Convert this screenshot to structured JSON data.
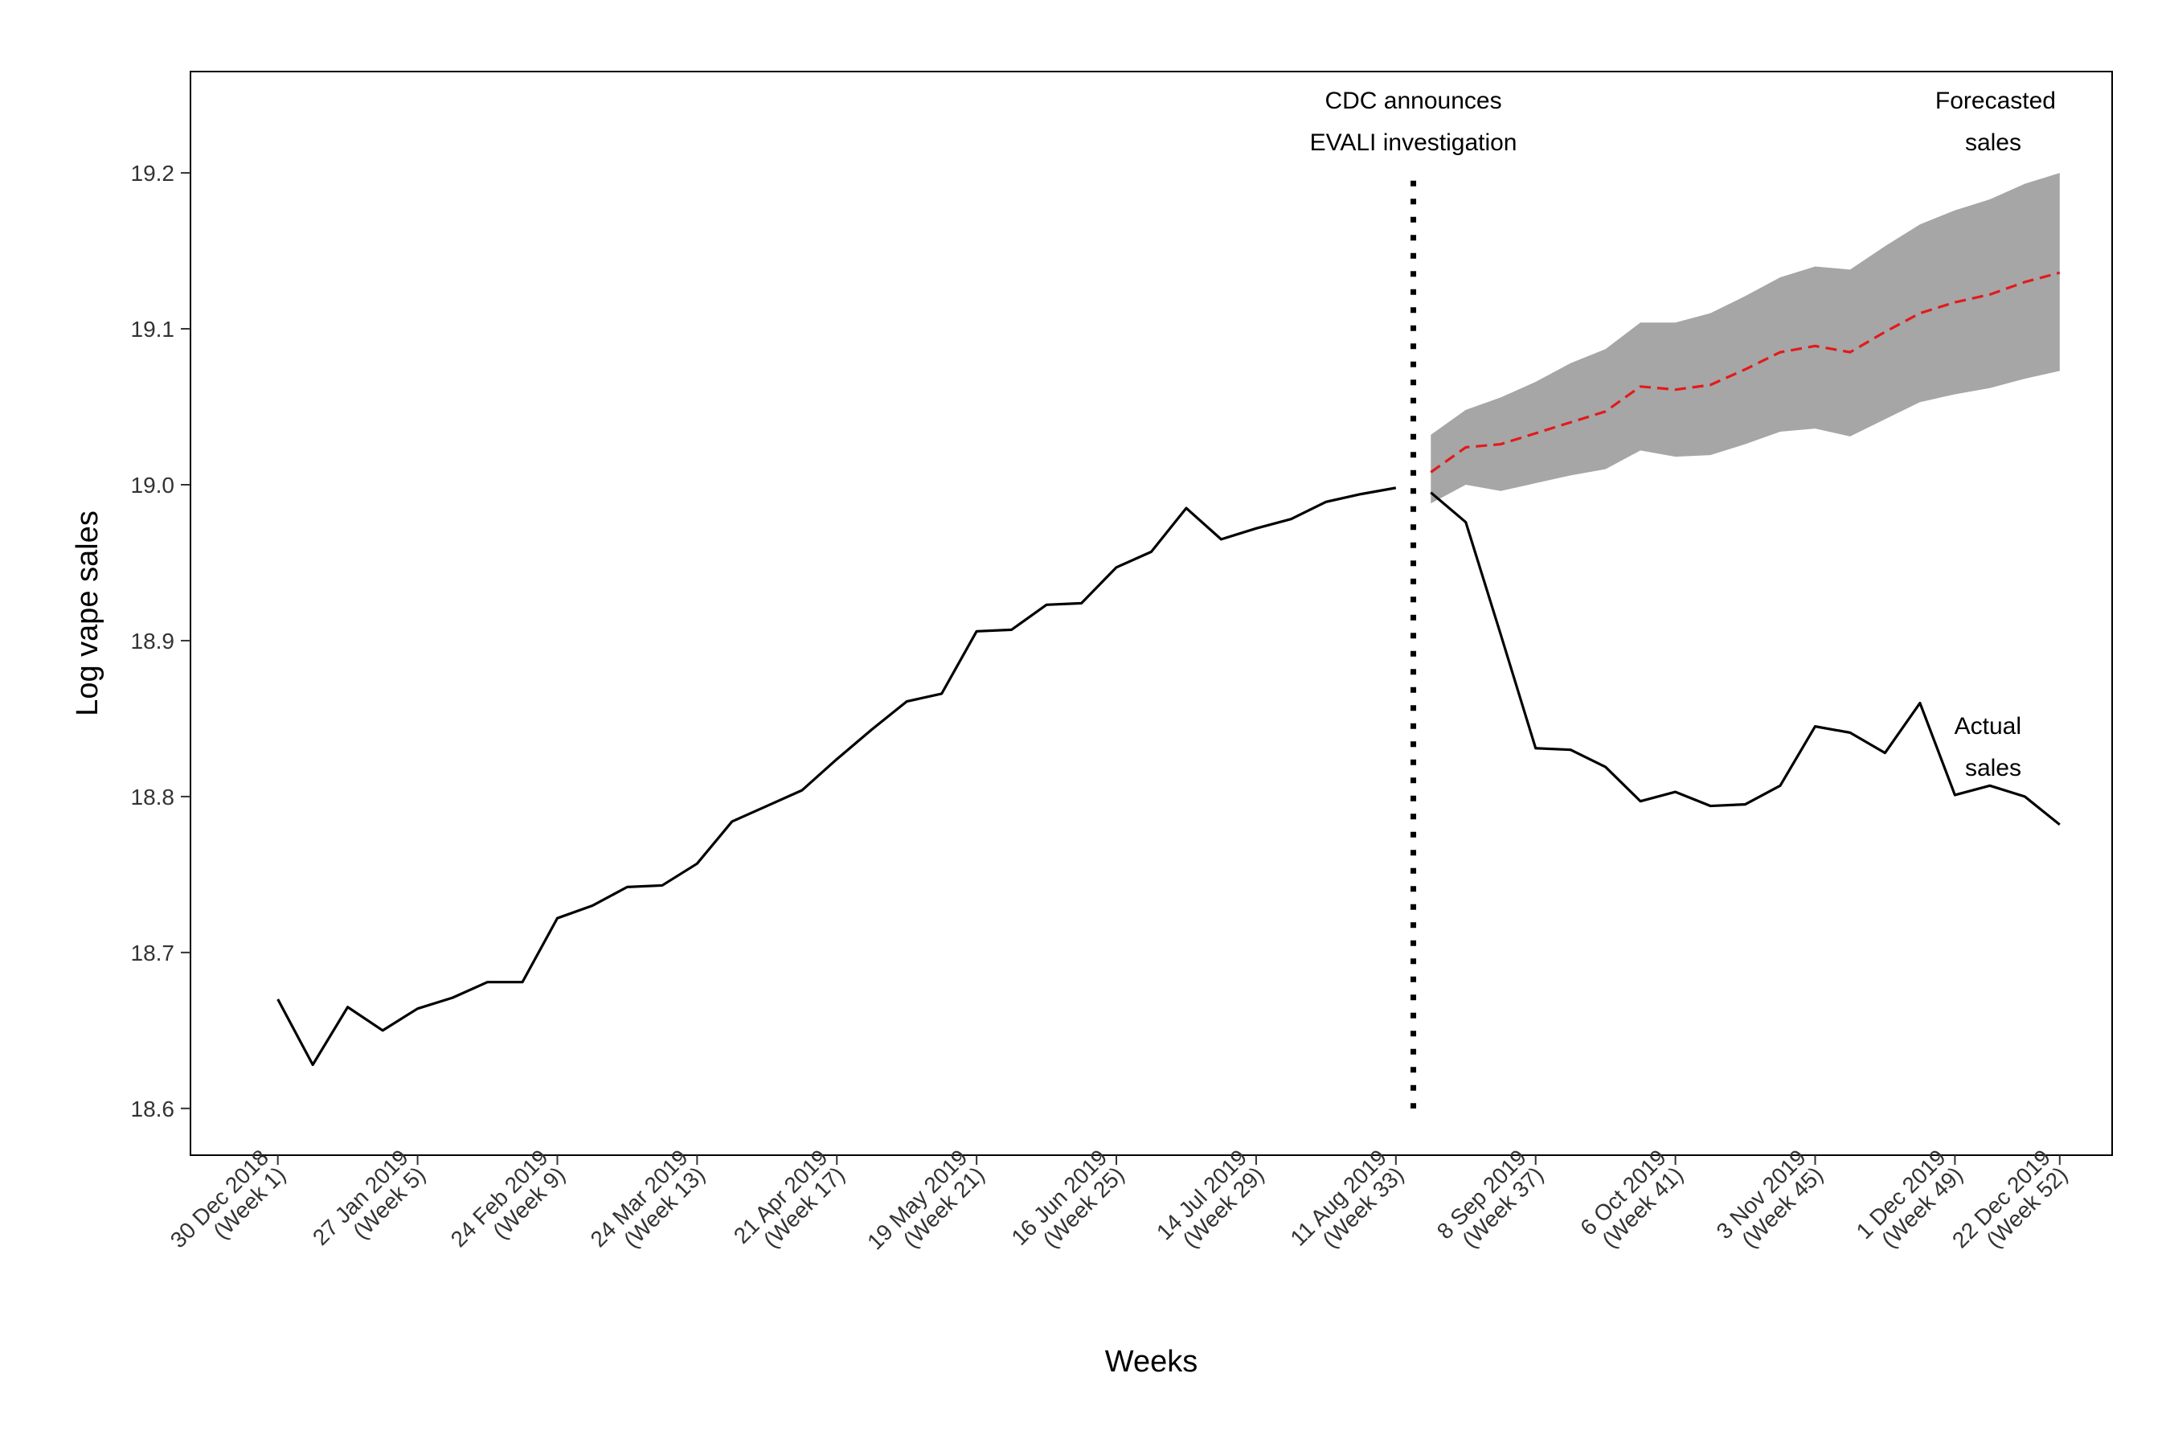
{
  "chart_data": {
    "type": "line",
    "xlabel": "Weeks",
    "ylabel": "Log vape sales",
    "ylim": [
      18.57,
      19.265
    ],
    "xlim": [
      -1.5,
      53.5
    ],
    "y_ticks": [
      18.6,
      18.7,
      18.8,
      18.9,
      19.0,
      19.1,
      19.2
    ],
    "y_tick_labels": [
      "18.6",
      "18.7",
      "18.8",
      "18.9",
      "19.0",
      "19.1",
      "19.2"
    ],
    "x_ticks": [
      {
        "week": 1,
        "line1": "30 Dec 2018",
        "line2": "(Week 1)"
      },
      {
        "week": 5,
        "line1": "27 Jan 2019",
        "line2": "(Week 5)"
      },
      {
        "week": 9,
        "line1": "24 Feb 2019",
        "line2": "(Week 9)"
      },
      {
        "week": 13,
        "line1": "24 Mar 2019",
        "line2": "(Week 13)"
      },
      {
        "week": 17,
        "line1": "21 Apr 2019",
        "line2": "(Week 17)"
      },
      {
        "week": 21,
        "line1": "19 May 2019",
        "line2": "(Week 21)"
      },
      {
        "week": 25,
        "line1": "16 Jun 2019",
        "line2": "(Week 25)"
      },
      {
        "week": 29,
        "line1": "14 Jul 2019",
        "line2": "(Week 29)"
      },
      {
        "week": 33,
        "line1": "11 Aug 2019",
        "line2": "(Week 33)"
      },
      {
        "week": 37,
        "line1": "8 Sep 2019",
        "line2": "(Week 37)"
      },
      {
        "week": 41,
        "line1": "6 Oct 2019",
        "line2": "(Week 41)"
      },
      {
        "week": 45,
        "line1": "3 Nov 2019",
        "line2": "(Week 45)"
      },
      {
        "week": 49,
        "line1": "1 Dec 2019",
        "line2": "(Week 49)"
      },
      {
        "week": 52,
        "line1": "22 Dec 2019",
        "line2": "(Week 52)"
      }
    ],
    "intervention_week": 33.5,
    "intervention_y_range": [
      18.6,
      19.195
    ],
    "series": [
      {
        "name": "Actual sales",
        "style": "solid",
        "color": "#000000",
        "x": [
          1,
          2,
          3,
          4,
          5,
          6,
          7,
          8,
          9,
          10,
          11,
          12,
          13,
          14,
          15,
          16,
          17,
          18,
          19,
          20,
          21,
          22,
          23,
          24,
          25,
          26,
          27,
          28,
          29,
          30,
          31,
          32,
          33
        ],
        "values": [
          18.67,
          18.628,
          18.665,
          18.65,
          18.664,
          18.671,
          18.681,
          18.681,
          18.722,
          18.73,
          18.742,
          18.743,
          18.757,
          18.784,
          18.794,
          18.804,
          18.824,
          18.843,
          18.861,
          18.866,
          18.906,
          18.907,
          18.923,
          18.924,
          18.947,
          18.957,
          18.985,
          18.965,
          18.972,
          18.978,
          18.989,
          18.994,
          18.998
        ]
      },
      {
        "name": "Actual sales (post)",
        "style": "solid",
        "color": "#000000",
        "x": [
          34,
          35,
          36,
          37,
          38,
          39,
          40,
          41,
          42,
          43,
          44,
          45,
          46,
          47,
          48,
          49,
          50,
          51,
          52
        ],
        "values": [
          18.995,
          18.976,
          18.904,
          18.831,
          18.83,
          18.819,
          18.797,
          18.803,
          18.794,
          18.795,
          18.807,
          18.845,
          18.841,
          18.828,
          18.86,
          18.801,
          18.807,
          18.8,
          18.782
        ]
      },
      {
        "name": "Forecasted sales",
        "style": "dashed",
        "color": "#e31a1c",
        "x": [
          34,
          35,
          36,
          37,
          38,
          39,
          40,
          41,
          42,
          43,
          44,
          45,
          46,
          47,
          48,
          49,
          50,
          51,
          52
        ],
        "values": [
          19.008,
          19.024,
          19.026,
          19.033,
          19.04,
          19.047,
          19.063,
          19.061,
          19.064,
          19.074,
          19.085,
          19.089,
          19.085,
          19.098,
          19.11,
          19.117,
          19.122,
          19.13,
          19.136
        ]
      }
    ],
    "band": {
      "name": "Forecast interval",
      "color": "#a6a6a6",
      "x": [
        34,
        35,
        36,
        37,
        38,
        39,
        40,
        41,
        42,
        43,
        44,
        45,
        46,
        47,
        48,
        49,
        50,
        51,
        52
      ],
      "upper": [
        19.032,
        19.048,
        19.056,
        19.066,
        19.078,
        19.087,
        19.104,
        19.104,
        19.11,
        19.121,
        19.133,
        19.14,
        19.138,
        19.153,
        19.167,
        19.176,
        19.183,
        19.193,
        19.2
      ],
      "lower": [
        18.988,
        19.0,
        18.996,
        19.001,
        19.006,
        19.01,
        19.022,
        19.018,
        19.019,
        19.026,
        19.034,
        19.036,
        19.031,
        19.042,
        19.053,
        19.058,
        19.062,
        19.068,
        19.073
      ]
    },
    "annotations": {
      "cdc_line1": "CDC announces",
      "cdc_line2": "EVALI investigation",
      "forecast_line1": "Forecasted",
      "forecast_line2": "sales",
      "actual_line1": "Actual",
      "actual_line2": "sales"
    }
  }
}
